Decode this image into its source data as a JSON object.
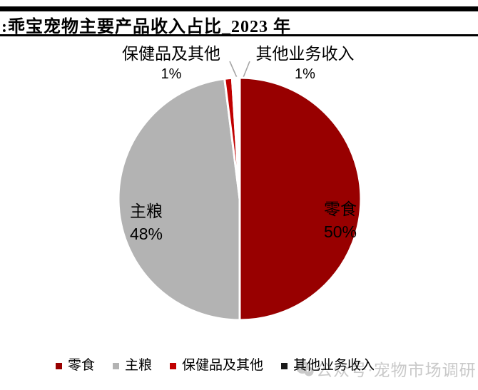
{
  "header": {
    "title": ":乖宝宠物主要产品收入占比_2023 年"
  },
  "chart_data": {
    "type": "pie",
    "title": "乖宝宠物主要产品收入占比_2023 年",
    "categories": [
      "零食",
      "主粮",
      "保健品及其他",
      "其他业务收入"
    ],
    "values": [
      50,
      48,
      1,
      1
    ],
    "unit": "%",
    "slice_colors": [
      "#980000",
      "#B3B3B3",
      "#C00000",
      "#FFFFFF"
    ],
    "border_color": "#FFFFFF",
    "start_angle_deg": 0,
    "direction": "clockwise",
    "legend_position": "bottom",
    "inner_labels": [
      {
        "name": "零食",
        "value": "50%"
      },
      {
        "name": "主粮",
        "value": "48%"
      }
    ],
    "callout_labels": [
      {
        "name": "保健品及其他",
        "value": "1%"
      },
      {
        "name": "其他业务收入",
        "value": "1%"
      }
    ]
  },
  "callouts": {
    "health": {
      "label": "保健品及其他",
      "value": "1%"
    },
    "other": {
      "label": "其他业务收入",
      "value": "1%"
    }
  },
  "pie_labels": {
    "staple": {
      "label": "主粮",
      "value": "48%"
    },
    "snack": {
      "label": "零食",
      "value": "50%"
    }
  },
  "legend": {
    "items": [
      {
        "label": "零食",
        "color": "#980000"
      },
      {
        "label": "主粮",
        "color": "#B3B3B3"
      },
      {
        "label": "保健品及其他",
        "color": "#C00000"
      },
      {
        "label": "其他业务收入",
        "color": "#1A1A1A"
      }
    ]
  },
  "watermark": {
    "icon": "wechat-icon",
    "text": "公众号·宠物市场调研",
    "color": "#C9C9C9"
  }
}
